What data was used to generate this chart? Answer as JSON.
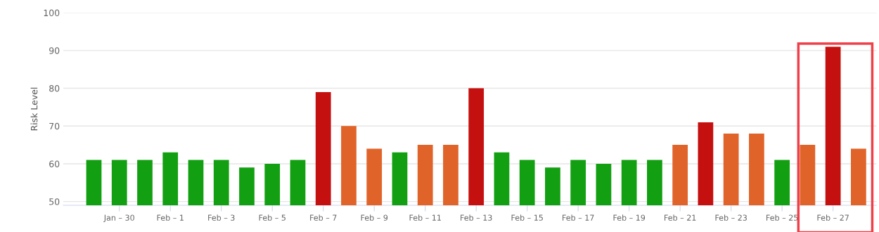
{
  "chart_data": {
    "type": "bar",
    "ylabel": "Risk Level",
    "categories": [
      null,
      "Jan – 30",
      null,
      "Feb – 1",
      null,
      "Feb – 3",
      null,
      "Feb – 5",
      null,
      "Feb – 7",
      null,
      "Feb – 9",
      null,
      "Feb – 11",
      null,
      "Feb – 13",
      null,
      "Feb – 15",
      null,
      "Feb – 17",
      null,
      "Feb – 19",
      null,
      "Feb – 21",
      null,
      "Feb – 23",
      null,
      "Feb – 25",
      null,
      "Feb – 27",
      null
    ],
    "values": [
      61,
      61,
      61,
      63,
      61,
      61,
      59,
      60,
      61,
      79,
      70,
      64,
      63,
      65,
      65,
      80,
      63,
      61,
      59,
      61,
      60,
      61,
      61,
      65,
      71,
      68,
      68,
      61,
      65,
      91,
      64
    ],
    "colors": [
      "#12a012",
      "#12a012",
      "#12a012",
      "#12a012",
      "#12a012",
      "#12a012",
      "#12a012",
      "#12a012",
      "#12a012",
      "#c4100f",
      "#e0642a",
      "#e0642a",
      "#12a012",
      "#e0642a",
      "#e0642a",
      "#c4100f",
      "#12a012",
      "#12a012",
      "#12a012",
      "#12a012",
      "#12a012",
      "#12a012",
      "#12a012",
      "#e0642a",
      "#c4100f",
      "#e0642a",
      "#e0642a",
      "#12a012",
      "#e0642a",
      "#c4100f",
      "#e0642a"
    ],
    "ylim": [
      49,
      100
    ],
    "yticks": [
      50,
      60,
      70,
      80,
      90,
      100
    ],
    "grid": "y"
  }
}
